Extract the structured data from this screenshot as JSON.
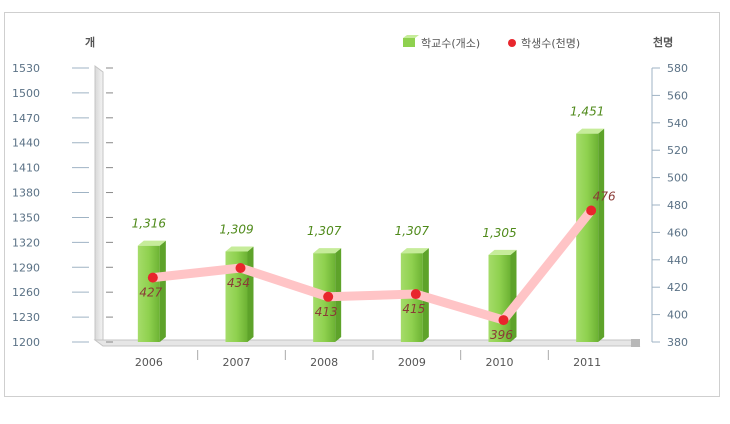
{
  "chart_data": {
    "type": "bar",
    "categories": [
      "2006",
      "2007",
      "2008",
      "2009",
      "2010",
      "2011"
    ],
    "series": [
      {
        "name": "학교수(개소)",
        "type": "bar",
        "axis": "left",
        "values": [
          1316,
          1309,
          1307,
          1307,
          1305,
          1451
        ],
        "labels": [
          "1,316",
          "1,309",
          "1,307",
          "1,307",
          "1,305",
          "1,451"
        ],
        "color": "#8fd14f"
      },
      {
        "name": "학생수(천명)",
        "type": "line",
        "axis": "right",
        "values": [
          427,
          434,
          413,
          415,
          396,
          476
        ],
        "labels": [
          "427",
          "434",
          "413",
          "415",
          "396",
          "476"
        ],
        "color": "#e8262d"
      }
    ],
    "left_axis": {
      "unit": "개",
      "ylim": [
        1200,
        1530
      ],
      "ticks": [
        "1530",
        "1500",
        "1470",
        "1440",
        "1410",
        "1380",
        "1350",
        "1320",
        "1290",
        "1260",
        "1230",
        "1200"
      ]
    },
    "right_axis": {
      "unit": "천명",
      "ylim": [
        380,
        580
      ],
      "ticks": [
        "580",
        "560",
        "540",
        "520",
        "500",
        "480",
        "460",
        "440",
        "420",
        "400",
        "380"
      ]
    },
    "legend_position": "top-right",
    "grid": false
  }
}
